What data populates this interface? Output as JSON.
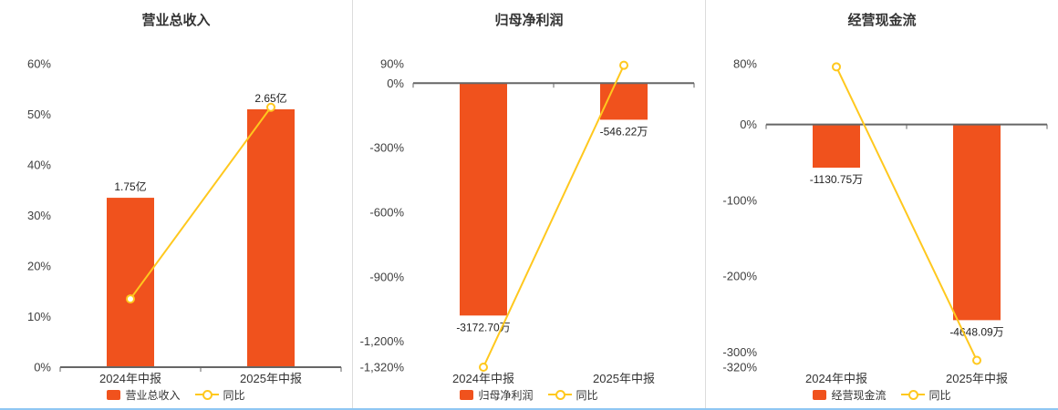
{
  "colors": {
    "background": "#ffffff",
    "bar": "#f0521d",
    "line": "#ffc81e",
    "zero_line": "#666666",
    "divider": "#dcdcdc",
    "bottom_border": "#8fc7f3",
    "title_text": "#333333",
    "axis_text": "#404040",
    "bar_label_text": "#222222",
    "category_text": "#333333"
  },
  "chart_data": [
    {
      "type": "bar",
      "title": "营业总收入",
      "categories": [
        "2024年中报",
        "2025年中报"
      ],
      "ylim": [
        0,
        60
      ],
      "yticks": [
        {
          "v": 60,
          "label": "60%"
        },
        {
          "v": 50,
          "label": "50%"
        },
        {
          "v": 40,
          "label": "40%"
        },
        {
          "v": 30,
          "label": "30%"
        },
        {
          "v": 20,
          "label": "20%"
        },
        {
          "v": 10,
          "label": "10%"
        },
        {
          "v": 0,
          "label": "0%"
        }
      ],
      "bar_series": {
        "name": "营业总收入",
        "values": [
          1.75,
          2.65
        ],
        "unit": "亿",
        "value_labels": [
          "1.75亿",
          "2.65亿"
        ],
        "plot_values": [
          33.5,
          51
        ]
      },
      "line_series": {
        "name": "同比",
        "values": [
          13.5,
          51.4
        ]
      }
    },
    {
      "type": "bar",
      "title": "归母净利润",
      "categories": [
        "2024年中报",
        "2025年中报"
      ],
      "ylim": [
        -1320,
        90
      ],
      "yticks": [
        {
          "v": 90,
          "label": "90%"
        },
        {
          "v": 0,
          "label": "0%"
        },
        {
          "v": -300,
          "label": "-300%"
        },
        {
          "v": -600,
          "label": "-600%"
        },
        {
          "v": -900,
          "label": "-900%"
        },
        {
          "v": -1200,
          "label": "-1,200%"
        },
        {
          "v": -1320,
          "label": "-1,320%"
        }
      ],
      "bar_series": {
        "name": "归母净利润",
        "values": [
          -3172.7,
          -546.22
        ],
        "unit": "万",
        "value_labels": [
          "-3172.70万",
          "-546.22万"
        ],
        "plot_values": [
          -1080,
          -170
        ]
      },
      "line_series": {
        "name": "同比",
        "values": [
          -1320,
          83
        ]
      }
    },
    {
      "type": "bar",
      "title": "经营现金流",
      "categories": [
        "2024年中报",
        "2025年中报"
      ],
      "ylim": [
        -320,
        80
      ],
      "yticks": [
        {
          "v": 80,
          "label": "80%"
        },
        {
          "v": 0,
          "label": "0%"
        },
        {
          "v": -100,
          "label": "-100%"
        },
        {
          "v": -200,
          "label": "-200%"
        },
        {
          "v": -300,
          "label": "-300%"
        },
        {
          "v": -320,
          "label": "-320%"
        }
      ],
      "bar_series": {
        "name": "经营现金流",
        "values": [
          -1130.75,
          -4648.09
        ],
        "unit": "万",
        "value_labels": [
          "-1130.75万",
          "-4648.09万"
        ],
        "plot_values": [
          -57,
          -258
        ]
      },
      "line_series": {
        "name": "同比",
        "values": [
          76,
          -311
        ]
      }
    }
  ]
}
